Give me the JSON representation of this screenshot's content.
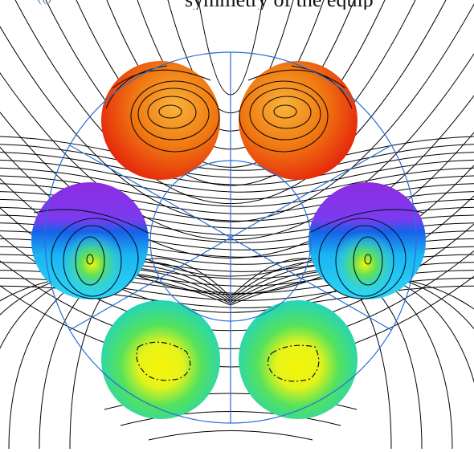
{
  "caption": {
    "left_fragment": "•(()",
    "right_fragment": "symmetry of the equip"
  },
  "colors": {
    "field_line": "#000000",
    "guide_line": "#2b6fd6",
    "conductor_top_hot": "#e8140a",
    "conductor_top_warm": "#f5a21a",
    "conductor_mid_purple": "#8a2be2",
    "conductor_mid_blue": "#1a6fe8",
    "conductor_mid_cyan": "#22d7f0",
    "conductor_bottom_cyan": "#14d3d6",
    "conductor_bottom_green": "#3fe07a",
    "conductor_bottom_yellow": "#f3f40a"
  },
  "conductors": [
    {
      "id": "top-left",
      "palette": "hot"
    },
    {
      "id": "top-right",
      "palette": "hot"
    },
    {
      "id": "mid-left",
      "palette": "cool"
    },
    {
      "id": "mid-right",
      "palette": "cool"
    },
    {
      "id": "bottom-left",
      "palette": "green"
    },
    {
      "id": "bottom-right",
      "palette": "green"
    }
  ]
}
